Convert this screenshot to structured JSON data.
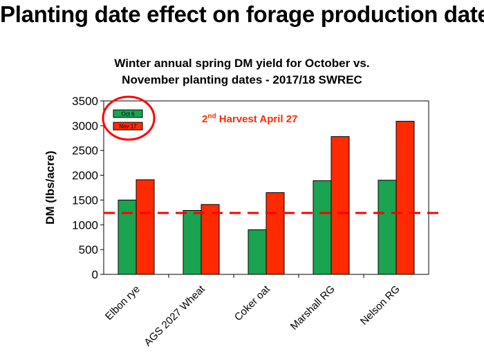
{
  "slide": {
    "title": "Planting date effect on forage production date"
  },
  "chart_data": {
    "type": "bar",
    "title_lines": [
      "Winter annual spring DM yield for October vs.",
      "November planting dates - 2017/18 SWREC"
    ],
    "ylabel": "DM (lbs/acre)",
    "xlabel": "",
    "ylim": [
      0,
      3500
    ],
    "yticks": [
      0,
      500,
      1000,
      1500,
      2000,
      2500,
      3000,
      3500
    ],
    "categories": [
      "Elbon rye",
      "AGS 2027 Wheat",
      "Coker oat",
      "Marshall RG",
      "Nelson RG"
    ],
    "series": [
      {
        "name": "Oct 6",
        "color": "#1aa350",
        "values": [
          1500,
          1290,
          900,
          1890,
          1900
        ]
      },
      {
        "name": "Nov 17",
        "color": "#ff2a00",
        "values": [
          1910,
          1410,
          1650,
          2780,
          3090
        ]
      }
    ],
    "reference_line": {
      "value": 1240,
      "color": "#ff0000",
      "style": "dashed"
    },
    "annotation": {
      "main": "2",
      "sup": "nd",
      "rest": " Harvest April 27",
      "color": "#ff2a00"
    },
    "legend": {
      "position": "top-left",
      "highlight_circle_color": "#ff0000"
    },
    "grid": false
  }
}
